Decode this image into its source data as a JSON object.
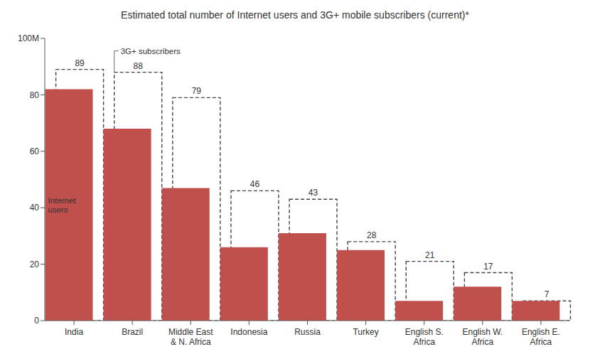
{
  "chart_data": {
    "type": "bar",
    "title": "Estimated total number of Internet users and 3G+ mobile subscribers (current)*",
    "categories": [
      "India",
      "Brazil",
      "Middle East\n& N. Africa",
      "Indonesia",
      "Russia",
      "Turkey",
      "English S.\nAfrica",
      "English W.\nAfrica",
      "English E.\nAfrica"
    ],
    "series": [
      {
        "name": "3G+ subscribers",
        "color": "#444444",
        "line_style": "dashed",
        "data_labels": true,
        "values": [
          89,
          88,
          79,
          46,
          43,
          28,
          21,
          17,
          7
        ]
      },
      {
        "name": "Internet\nusers",
        "color": "#c0504d",
        "values": [
          82,
          68,
          47,
          26,
          31,
          25,
          7,
          12,
          7
        ]
      }
    ],
    "ylim": [
      0,
      100
    ],
    "yticks": [
      0,
      20,
      40,
      60,
      80,
      {
        "value": 100,
        "label": "100M"
      }
    ],
    "grid": false
  }
}
